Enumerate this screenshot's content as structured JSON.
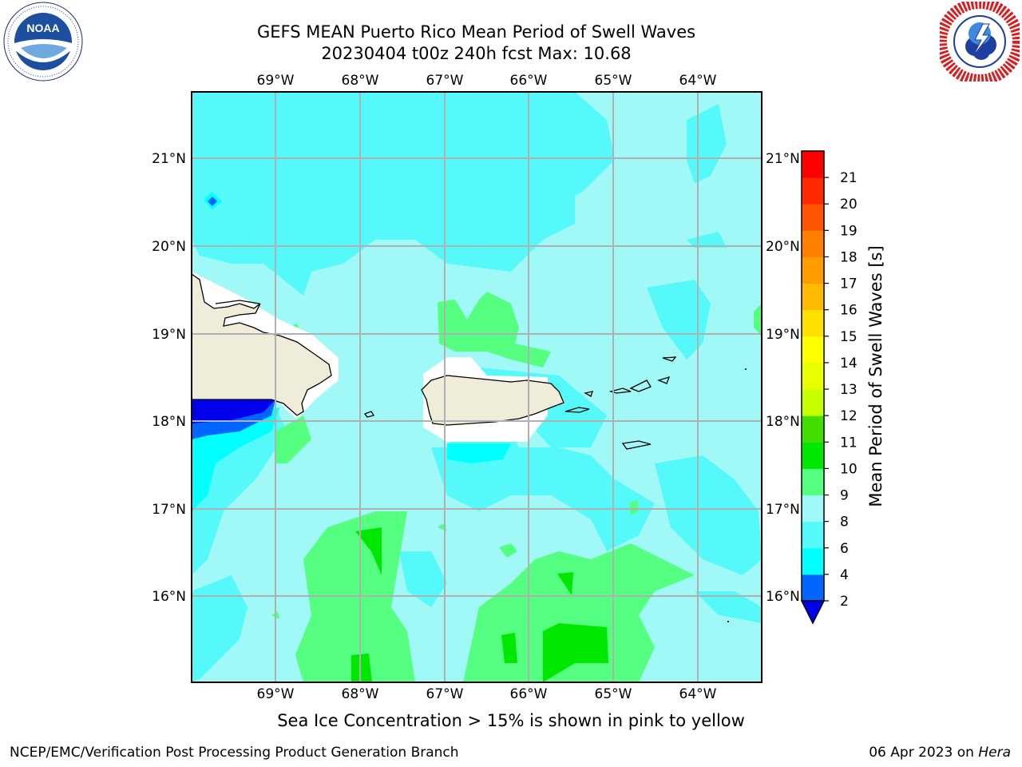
{
  "title_line1": "GEFS MEAN Puerto Rico Mean Period of Swell Waves",
  "title_line2": "20230404 t00z 240h fcst   Max: 10.68",
  "caption": "Sea Ice Concentration > 15% is shown in pink to yellow",
  "footer_left": "NCEP/EMC/Verification Post Processing Product Generation Branch",
  "footer_date": "06 Apr 2023 on ",
  "footer_host": "Hera",
  "colorbar_label": "Mean Period of Swell Waves [s]",
  "logos": {
    "left": "noaa-logo",
    "right": "nws-logo"
  },
  "map": {
    "lon_ticks": [
      "69°W",
      "68°W",
      "67°W",
      "66°W",
      "65°W",
      "64°W"
    ],
    "lat_ticks": [
      "21°N",
      "20°N",
      "19°N",
      "18°N",
      "17°N",
      "16°N"
    ],
    "land_color": "#efedd9",
    "ocean_base_color": "#a1f9f7"
  },
  "colorbar": {
    "levels": [
      "2",
      "4",
      "6",
      "8",
      "9",
      "10",
      "11",
      "12",
      "13",
      "14",
      "15",
      "16",
      "17",
      "18",
      "19",
      "20",
      "21"
    ],
    "colors": [
      "#0066ff",
      "#00ffff",
      "#55f9f9",
      "#a1f9f7",
      "#55ff7f",
      "#00e800",
      "#44dd00",
      "#c5ff00",
      "#e8ff00",
      "#ffff00",
      "#ffe000",
      "#ffbb00",
      "#ff9d00",
      "#ff7f00",
      "#ff5500",
      "#ff2a00",
      "#ff0000"
    ],
    "under_color": "#0000ee"
  }
}
